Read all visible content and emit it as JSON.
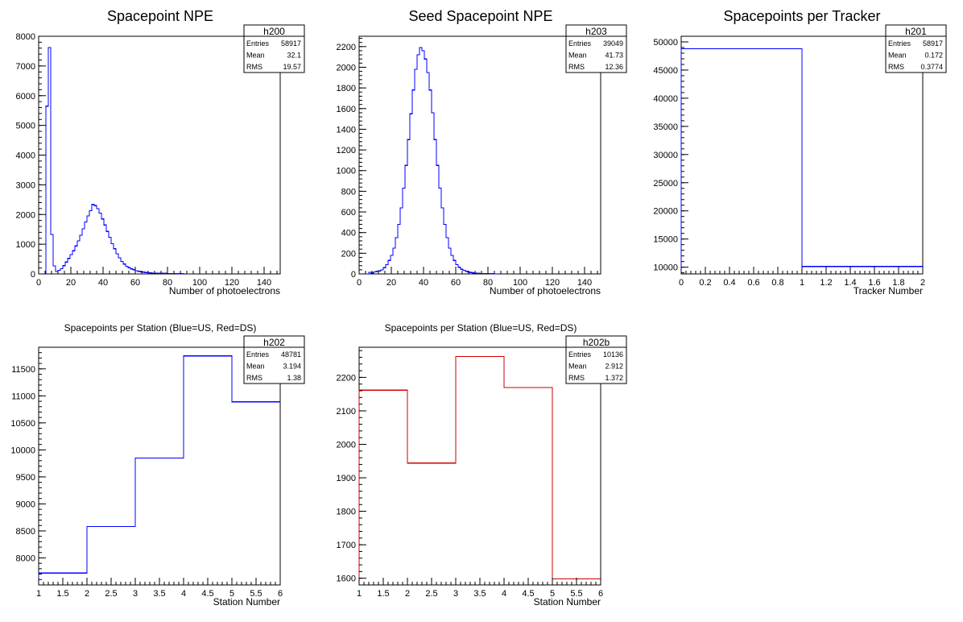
{
  "chart_data": [
    {
      "type": "histogram",
      "title": "Spacepoint NPE",
      "xlabel": "Number of photoelectrons",
      "ylabel": "",
      "xlim": [
        0,
        150
      ],
      "ylim": [
        0,
        8000
      ],
      "x_ticks": [
        0,
        20,
        40,
        60,
        80,
        100,
        120,
        140
      ],
      "y_ticks": [
        0,
        1000,
        2000,
        3000,
        4000,
        5000,
        6000,
        7000,
        8000
      ],
      "line_color": "#0000ff",
      "bin_width": 1.5,
      "values": [
        0,
        0,
        0,
        5650,
        7620,
        1330,
        270,
        80,
        120,
        180,
        280,
        400,
        520,
        650,
        780,
        940,
        1110,
        1300,
        1520,
        1750,
        1950,
        2130,
        2340,
        2300,
        2200,
        2050,
        1850,
        1650,
        1430,
        1230,
        1020,
        850,
        680,
        540,
        420,
        330,
        260,
        210,
        170,
        140,
        110,
        90,
        75,
        60,
        48,
        40,
        35,
        30,
        27,
        24,
        22,
        20,
        18,
        16,
        14,
        12,
        10,
        8,
        6,
        5
      ],
      "stats": {
        "name": "h200",
        "Entries": "58917",
        "Mean": "32.1",
        "RMS": "19.57"
      }
    },
    {
      "type": "histogram",
      "title": "Seed Spacepoint NPE",
      "xlabel": "Number of photoelectrons",
      "ylabel": "",
      "xlim": [
        0,
        150
      ],
      "ylim": [
        0,
        2300
      ],
      "x_ticks": [
        0,
        20,
        40,
        60,
        80,
        100,
        120,
        140
      ],
      "y_ticks": [
        0,
        200,
        400,
        600,
        800,
        1000,
        1200,
        1400,
        1600,
        1800,
        2000,
        2200
      ],
      "line_color": "#0000ff",
      "bin_width": 1.5,
      "values": [
        0,
        0,
        0,
        0,
        15,
        10,
        20,
        25,
        30,
        40,
        60,
        90,
        130,
        180,
        250,
        350,
        480,
        640,
        830,
        1050,
        1300,
        1550,
        1780,
        1980,
        2120,
        2190,
        2160,
        2080,
        1950,
        1780,
        1560,
        1300,
        1050,
        830,
        640,
        480,
        350,
        250,
        180,
        130,
        90,
        65,
        45,
        35,
        25,
        18,
        14,
        10,
        8,
        6,
        5,
        4,
        3,
        3,
        2,
        2,
        1
      ],
      "stats": {
        "name": "h203",
        "Entries": "39049",
        "Mean": "41.73",
        "RMS": "12.36"
      }
    },
    {
      "type": "histogram",
      "title": "Spacepoints per Tracker",
      "xlabel": "Tracker Number",
      "ylabel": "",
      "xlim": [
        0,
        2
      ],
      "ylim": [
        8800,
        51000
      ],
      "x_ticks": [
        0,
        0.2,
        0.4,
        0.6,
        0.8,
        1,
        1.2,
        1.4,
        1.6,
        1.8,
        2
      ],
      "y_ticks": [
        10000,
        15000,
        20000,
        25000,
        30000,
        35000,
        40000,
        45000,
        50000
      ],
      "line_color": "#0000ff",
      "bin_edges": [
        0,
        1,
        2
      ],
      "values": [
        48781,
        10136
      ],
      "stats": {
        "name": "h201",
        "Entries": "58917",
        "Mean": "0.172",
        "RMS": "0.3774"
      }
    },
    {
      "type": "histogram",
      "title": "Spacepoints per Station (Blue=US, Red=DS)",
      "xlabel": "Station Number",
      "ylabel": "",
      "xlim": [
        1,
        6
      ],
      "ylim": [
        7500,
        11900
      ],
      "x_ticks": [
        1,
        1.5,
        2,
        2.5,
        3,
        3.5,
        4,
        4.5,
        5,
        5.5,
        6
      ],
      "y_ticks": [
        8000,
        8500,
        9000,
        9500,
        10000,
        10500,
        11000,
        11500
      ],
      "line_color": "#0000ff",
      "bin_edges": [
        1,
        2,
        3,
        4,
        5,
        6
      ],
      "values": [
        7720,
        8580,
        9850,
        11740,
        10890
      ],
      "stats": {
        "name": "h202",
        "Entries": "48781",
        "Mean": "3.194",
        "RMS": "1.38"
      }
    },
    {
      "type": "histogram",
      "title": "Spacepoints per Station (Blue=US, Red=DS)",
      "xlabel": "Station Number",
      "ylabel": "",
      "xlim": [
        1,
        6
      ],
      "ylim": [
        1580,
        2290
      ],
      "x_ticks": [
        1,
        1.5,
        2,
        2.5,
        3,
        3.5,
        4,
        4.5,
        5,
        5.5,
        6
      ],
      "y_ticks": [
        1600,
        1700,
        1800,
        1900,
        2000,
        2100,
        2200
      ],
      "line_color": "#cc0000",
      "bin_edges": [
        1,
        2,
        3,
        4,
        5,
        6
      ],
      "values": [
        2162,
        1944,
        2262,
        2170,
        1598
      ],
      "stats": {
        "name": "h202b",
        "Entries": "10136",
        "Mean": "2.912",
        "RMS": "1.372"
      }
    }
  ]
}
